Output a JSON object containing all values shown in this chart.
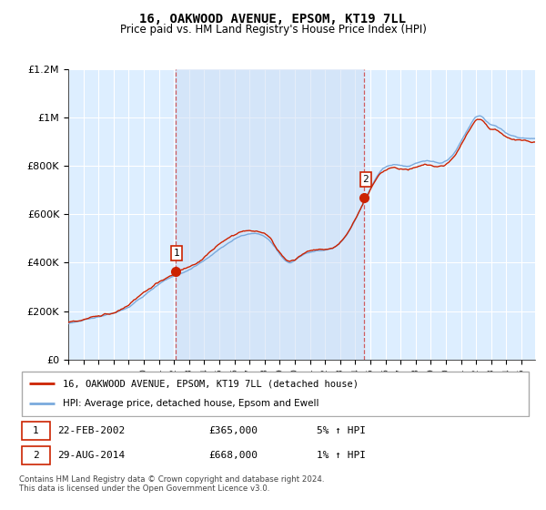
{
  "title": "16, OAKWOOD AVENUE, EPSOM, KT19 7LL",
  "subtitle": "Price paid vs. HM Land Registry's House Price Index (HPI)",
  "legend_line1": "16, OAKWOOD AVENUE, EPSOM, KT19 7LL (detached house)",
  "legend_line2": "HPI: Average price, detached house, Epsom and Ewell",
  "sale1_date": "22-FEB-2002",
  "sale1_price": "£365,000",
  "sale1_hpi": "5% ↑ HPI",
  "sale2_date": "29-AUG-2014",
  "sale2_price": "£668,000",
  "sale2_hpi": "1% ↑ HPI",
  "footer": "Contains HM Land Registry data © Crown copyright and database right 2024.\nThis data is licensed under the Open Government Licence v3.0.",
  "hpi_color": "#7aaadd",
  "price_color": "#cc2200",
  "sale_marker_color": "#cc2200",
  "vline_color": "#cc4444",
  "bg_color": "#ddeeff",
  "highlight_color": "#ddeeff",
  "ylim": [
    0,
    1200000
  ],
  "yticks": [
    0,
    200000,
    400000,
    600000,
    800000,
    1000000,
    1200000
  ],
  "ytick_labels": [
    "£0",
    "£200K",
    "£400K",
    "£600K",
    "£800K",
    "£1M",
    "£1.2M"
  ],
  "start_year": 1995,
  "end_year": 2026,
  "sale1_year": 2002.083,
  "sale1_val": 365000,
  "sale2_year": 2014.583,
  "sale2_val": 668000
}
